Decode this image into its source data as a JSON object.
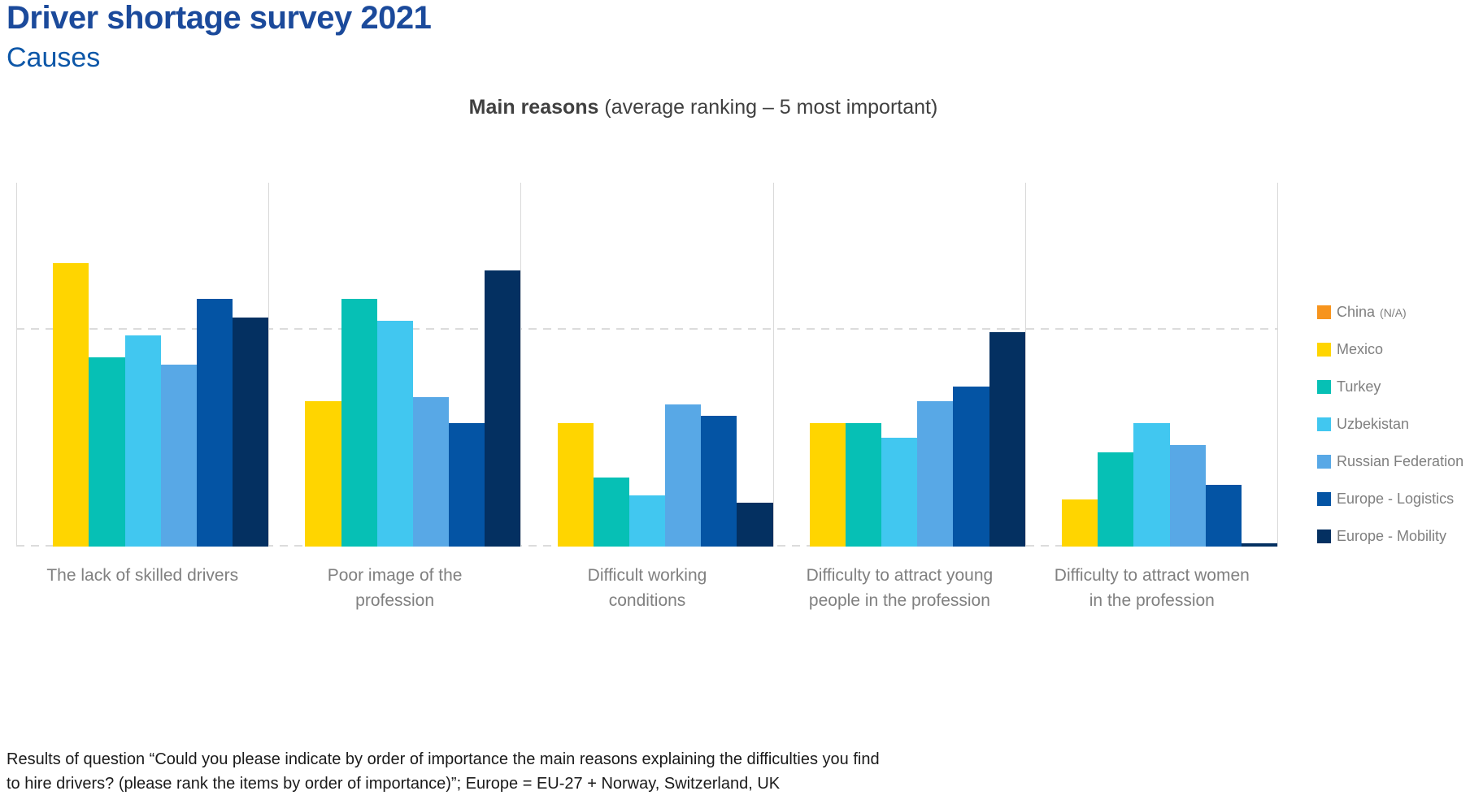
{
  "header": {
    "title": "Driver shortage survey 2021",
    "subtitle": "Causes"
  },
  "chart_title": {
    "bold": "Main reasons",
    "rest": " (average ranking – 5 most important)"
  },
  "legend": [
    {
      "key": "china",
      "label": "China",
      "suffix": "(N/A)",
      "color": "#F7941D"
    },
    {
      "key": "mexico",
      "label": "Mexico",
      "suffix": "",
      "color": "#FFD500"
    },
    {
      "key": "turkey",
      "label": "Turkey",
      "suffix": "",
      "color": "#06C0B5"
    },
    {
      "key": "uzbekistan",
      "label": "Uzbekistan",
      "suffix": "",
      "color": "#41C7F0"
    },
    {
      "key": "russian-federation",
      "label": "Russian Federation",
      "suffix": "",
      "color": "#58A8E6"
    },
    {
      "key": "europe-logistics",
      "label": "Europe - Logistics",
      "suffix": "",
      "color": "#0454A4"
    },
    {
      "key": "europe-mobility",
      "label": "Europe - Mobility",
      "suffix": "",
      "color": "#043061"
    }
  ],
  "chart_data": {
    "type": "bar",
    "title": "Main reasons (average ranking – 5 most important)",
    "xlabel": "",
    "ylabel": "",
    "ylim": [
      0,
      5
    ],
    "gridline_values": [
      0,
      3
    ],
    "grid": "dashed horizontal lines at 0 and 3; light vertical separators between categories",
    "legend_position": "right",
    "categories": [
      "The lack of skilled drivers",
      "Poor image of the profession",
      "Difficult working conditions",
      "Difficulty to attract young people in the profession",
      "Difficulty to attract women in the profession"
    ],
    "series": [
      {
        "key": "china",
        "name": "China (N/A)",
        "color": "#F7941D",
        "values": [
          null,
          null,
          null,
          null,
          null
        ]
      },
      {
        "key": "mexico",
        "name": "Mexico",
        "color": "#FFD500",
        "values": [
          3.9,
          2.0,
          1.7,
          1.7,
          0.65
        ]
      },
      {
        "key": "turkey",
        "name": "Turkey",
        "color": "#06C0B5",
        "values": [
          2.6,
          3.4,
          0.95,
          1.7,
          1.3
        ]
      },
      {
        "key": "uzbekistan",
        "name": "Uzbekistan",
        "color": "#41C7F0",
        "values": [
          2.9,
          3.1,
          0.7,
          1.5,
          1.7
        ]
      },
      {
        "key": "russian-federation",
        "name": "Russian Federation",
        "color": "#58A8E6",
        "values": [
          2.5,
          2.05,
          1.95,
          2.0,
          1.4
        ]
      },
      {
        "key": "europe-logistics",
        "name": "Europe - Logistics",
        "color": "#0454A4",
        "values": [
          3.4,
          1.7,
          1.8,
          2.2,
          0.85
        ]
      },
      {
        "key": "europe-mobility",
        "name": "Europe - Mobility",
        "color": "#043061",
        "values": [
          3.15,
          3.8,
          0.6,
          2.95,
          0.05
        ]
      }
    ]
  },
  "footnote": {
    "line1": "Results of question “Could you please indicate by order of importance the main reasons explaining the difficulties you find",
    "line2": "to hire drivers? (please rank the items by order of importance)”; Europe = EU-27 + Norway, Switzerland, UK"
  }
}
